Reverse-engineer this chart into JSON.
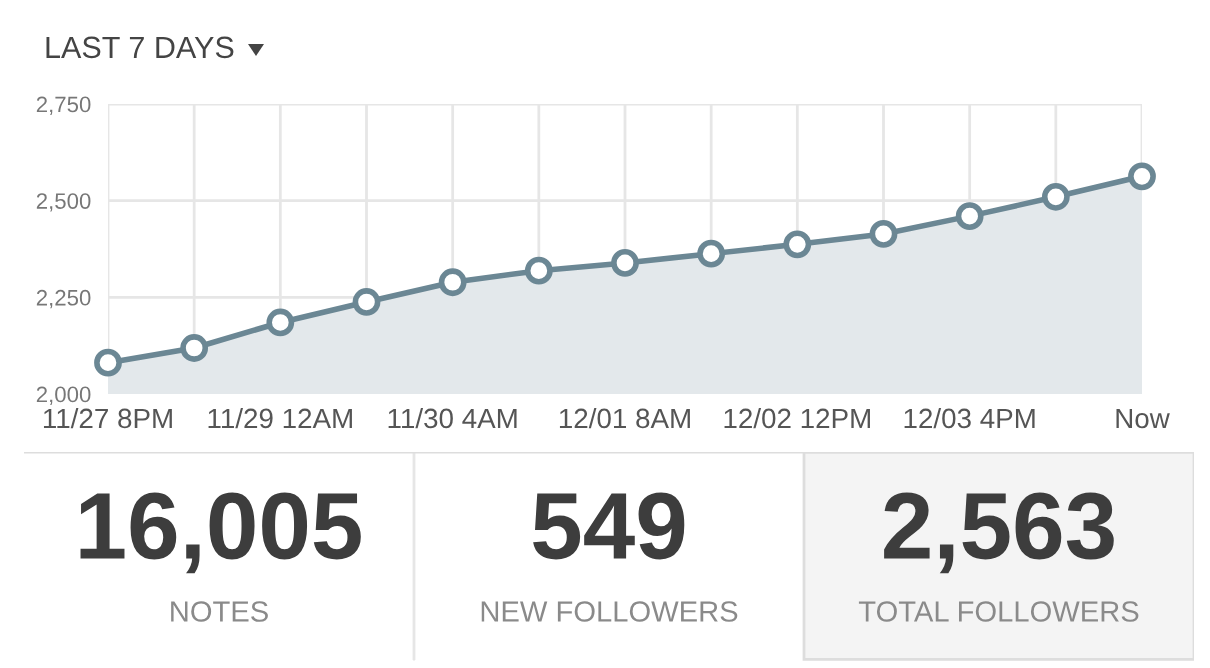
{
  "chart_data": [
    {
      "type": "area",
      "title": "LAST 7 DAYS",
      "categories": [
        "11/27 8PM",
        null,
        "11/29 12AM",
        null,
        "11/30 4AM",
        null,
        "12/01 8AM",
        null,
        "12/02 12PM",
        null,
        "12/03 4PM",
        null,
        "Now"
      ],
      "series": [
        {
          "color": "#6b8794",
          "values": [
            2081,
            2119,
            2185,
            2238,
            2289,
            2319,
            2339,
            2363,
            2387,
            2414,
            2460,
            2510,
            2563
          ]
        }
      ],
      "ylim": [
        2000,
        2750
      ],
      "yticks": [
        {
          "value": 2000,
          "label": "2,000"
        },
        {
          "value": 2250,
          "label": "2,250"
        },
        {
          "value": 2500,
          "label": "2,500"
        },
        {
          "value": 2750,
          "label": "2,750"
        }
      ],
      "grid": true,
      "marker": "circle",
      "line_style": "solid",
      "legend": false
    },
    {
      "type": "other",
      "annotations": [
        "16,005",
        "NOTES",
        "549",
        "NEW FOLLOWERS",
        "2,563",
        "TOTAL FOLLOWERS"
      ]
    }
  ]
}
